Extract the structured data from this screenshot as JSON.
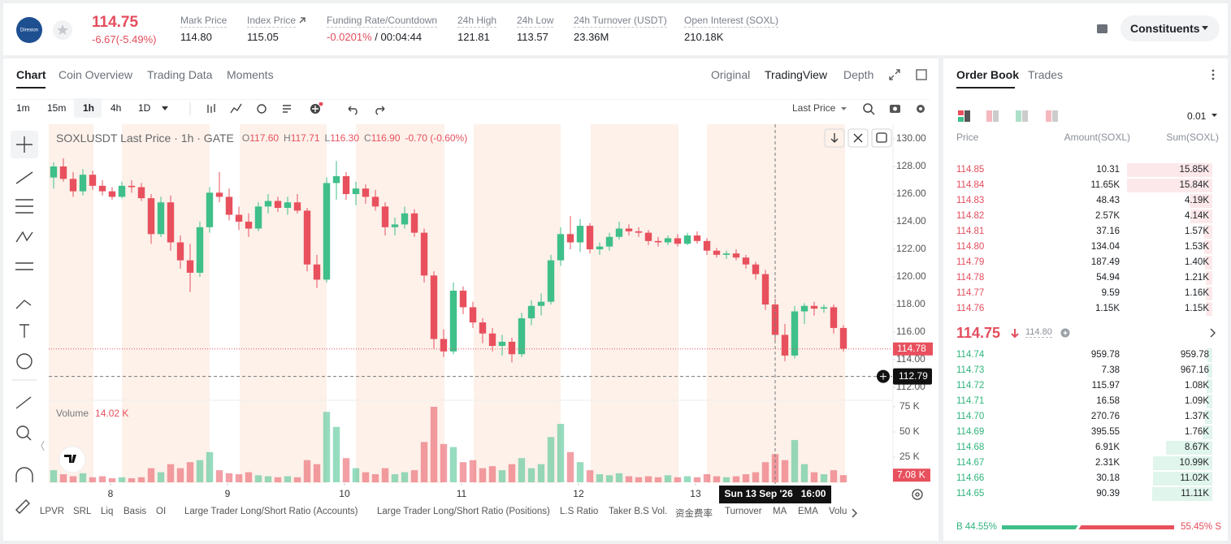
{
  "header": {
    "logo_text": "Direxion",
    "price": "114.75",
    "change": "-6.67(-5.49%)",
    "stats": [
      {
        "label": "Mark Price",
        "value": "114.80"
      },
      {
        "label": "Index Price",
        "value": "115.05"
      },
      {
        "label": "Funding Rate/Countdown",
        "value": "-0.0201%",
        "countdown": "/ 00:04:44"
      },
      {
        "label": "24h High",
        "value": "121.81"
      },
      {
        "label": "24h Low",
        "value": "113.57"
      },
      {
        "label": "24h Turnover (USDT)",
        "value": "23.36M"
      },
      {
        "label": "Open Interest (SOXL)",
        "value": "210.18K"
      }
    ],
    "button": "Constituents"
  },
  "tabs": [
    "Chart",
    "Coin Overview",
    "Trading Data",
    "Moments"
  ],
  "view_tabs": [
    "Original",
    "TradingView",
    "Depth"
  ],
  "intervals": [
    "1m",
    "15m",
    "1h",
    "4h",
    "1D"
  ],
  "price_type": "Last Price",
  "indicators": [
    "LPVR",
    "SRL",
    "Liq",
    "Basis",
    "OI",
    "Large Trader Long/Short Ratio (Accounts)",
    "Large Trader Long/Short Ratio (Positions)",
    "L.S Ratio",
    "Taker B.S Vol.",
    "资金费率",
    "Turnover",
    "MA",
    "EMA",
    "Volu"
  ],
  "chart_data": {
    "type": "candlestick",
    "up_color": "#3fbf8a",
    "down_color": "#e8505d",
    "legend": {
      "title": "SOXLUSDT Last Price · 1h · GATE",
      "ohlc": [
        {
          "label": "O",
          "value": "117.60"
        },
        {
          "label": "H",
          "value": "117.71"
        },
        {
          "label": "L",
          "value": "116.30"
        },
        {
          "label": "C",
          "value": "116.90"
        }
      ],
      "change": "-0.70 (-0.60%)"
    },
    "ylim": [
      111.06,
      131.06
    ],
    "yticks": [
      {
        "value": 112,
        "label": "112.00"
      },
      {
        "value": 114,
        "label": "114.00"
      },
      {
        "value": 116,
        "label": "116.00"
      },
      {
        "value": 118,
        "label": "118.00"
      },
      {
        "value": 120,
        "label": "120.00"
      },
      {
        "value": 122,
        "label": "122.00"
      },
      {
        "value": 124,
        "label": "124.00"
      },
      {
        "value": 126,
        "label": "126.00"
      },
      {
        "value": 128,
        "label": "128.00"
      },
      {
        "value": 130,
        "label": "130.00"
      }
    ],
    "xlim": [
      0,
      86.5
    ],
    "xticks": [
      {
        "value": 6.33,
        "label": "8"
      },
      {
        "value": 18.33,
        "label": "9"
      },
      {
        "value": 30.33,
        "label": "10"
      },
      {
        "value": 42.33,
        "label": "11"
      },
      {
        "value": 54.33,
        "label": "12"
      },
      {
        "value": 66.33,
        "label": "13"
      }
    ],
    "ohlc": [
      [
        127.2,
        128.3,
        126.4,
        128.0
      ],
      [
        128.0,
        128.6,
        126.9,
        127.1
      ],
      [
        127.1,
        127.6,
        125.8,
        126.2
      ],
      [
        126.2,
        127.8,
        125.9,
        127.4
      ],
      [
        127.4,
        127.7,
        126.3,
        126.6
      ],
      [
        126.6,
        127.0,
        125.9,
        126.2
      ],
      [
        126.2,
        126.5,
        125.6,
        125.8
      ],
      [
        125.8,
        126.9,
        125.7,
        126.6
      ],
      [
        126.6,
        127.0,
        126.1,
        126.5
      ],
      [
        126.5,
        126.8,
        125.5,
        125.7
      ],
      [
        125.7,
        126.0,
        122.4,
        123.1
      ],
      [
        123.1,
        125.8,
        122.9,
        125.4
      ],
      [
        125.4,
        125.9,
        121.9,
        122.5
      ],
      [
        122.5,
        123.0,
        120.6,
        121.2
      ],
      [
        121.2,
        122.4,
        118.9,
        120.3
      ],
      [
        120.3,
        124.0,
        120.0,
        123.6
      ],
      [
        123.6,
        126.5,
        123.2,
        126.1
      ],
      [
        126.1,
        127.6,
        125.4,
        125.8
      ],
      [
        125.8,
        126.4,
        124.1,
        124.5
      ],
      [
        124.5,
        125.1,
        123.4,
        124.0
      ],
      [
        124.0,
        124.6,
        122.9,
        123.5
      ],
      [
        123.5,
        125.4,
        123.3,
        125.1
      ],
      [
        125.1,
        126.0,
        124.6,
        125.5
      ],
      [
        125.5,
        125.8,
        124.7,
        125.0
      ],
      [
        125.0,
        125.8,
        124.5,
        125.4
      ],
      [
        125.4,
        126.0,
        124.6,
        124.8
      ],
      [
        124.8,
        125.0,
        120.4,
        120.9
      ],
      [
        120.9,
        121.6,
        119.2,
        119.8
      ],
      [
        119.8,
        127.2,
        119.6,
        126.8
      ],
      [
        126.8,
        128.4,
        125.6,
        127.3
      ],
      [
        127.3,
        127.6,
        125.6,
        126.0
      ],
      [
        126.0,
        126.9,
        125.2,
        126.4
      ],
      [
        126.4,
        126.7,
        125.3,
        125.8
      ],
      [
        125.8,
        126.3,
        124.8,
        125.1
      ],
      [
        125.1,
        125.4,
        123.0,
        123.6
      ],
      [
        123.6,
        124.3,
        123.0,
        123.8
      ],
      [
        123.8,
        125.1,
        123.5,
        124.6
      ],
      [
        124.6,
        124.9,
        122.9,
        123.2
      ],
      [
        123.2,
        123.5,
        119.6,
        120.1
      ],
      [
        120.1,
        120.4,
        114.8,
        115.5
      ],
      [
        115.5,
        116.2,
        114.2,
        114.6
      ],
      [
        114.6,
        119.6,
        114.4,
        119.0
      ],
      [
        119.0,
        119.3,
        117.3,
        117.8
      ],
      [
        117.8,
        118.2,
        116.3,
        116.7
      ],
      [
        116.7,
        117.0,
        115.2,
        115.9
      ],
      [
        115.9,
        116.3,
        114.6,
        115.0
      ],
      [
        115.0,
        115.8,
        114.3,
        115.3
      ],
      [
        115.3,
        115.6,
        113.8,
        114.4
      ],
      [
        114.4,
        117.4,
        114.2,
        117.0
      ],
      [
        117.0,
        118.3,
        116.5,
        117.9
      ],
      [
        117.9,
        118.8,
        117.2,
        118.2
      ],
      [
        118.2,
        121.6,
        118.0,
        121.2
      ],
      [
        121.2,
        123.6,
        120.8,
        123.1
      ],
      [
        123.1,
        124.4,
        122.0,
        122.5
      ],
      [
        122.5,
        124.2,
        121.8,
        123.7
      ],
      [
        123.7,
        123.9,
        121.7,
        122.0
      ],
      [
        122.0,
        122.5,
        121.6,
        122.2
      ],
      [
        122.2,
        123.2,
        121.9,
        122.9
      ],
      [
        122.9,
        124.0,
        122.7,
        123.5
      ],
      [
        123.5,
        123.8,
        123.0,
        123.3
      ],
      [
        123.3,
        123.6,
        122.9,
        123.2
      ],
      [
        123.2,
        123.4,
        122.3,
        122.6
      ],
      [
        122.6,
        122.9,
        122.2,
        122.5
      ],
      [
        122.5,
        123.0,
        122.3,
        122.8
      ],
      [
        122.8,
        123.1,
        122.2,
        122.4
      ],
      [
        122.4,
        123.2,
        122.3,
        123.0
      ],
      [
        123.0,
        123.3,
        122.4,
        122.6
      ],
      [
        122.6,
        122.8,
        121.6,
        121.9
      ],
      [
        121.9,
        122.1,
        121.4,
        121.6
      ],
      [
        121.6,
        121.9,
        121.3,
        121.7
      ],
      [
        121.7,
        122.0,
        121.2,
        121.4
      ],
      [
        121.4,
        121.6,
        120.6,
        120.9
      ],
      [
        120.9,
        121.1,
        119.8,
        120.2
      ],
      [
        120.2,
        120.5,
        117.6,
        118.0
      ],
      [
        118.0,
        118.4,
        115.4,
        115.8
      ],
      [
        115.8,
        116.6,
        113.9,
        114.3
      ],
      [
        114.3,
        117.9,
        114.1,
        117.5
      ],
      [
        117.5,
        118.1,
        116.6,
        117.9
      ],
      [
        117.9,
        118.2,
        117.2,
        117.7
      ],
      [
        117.7,
        118.0,
        117.4,
        117.8
      ],
      [
        117.8,
        118.0,
        115.9,
        116.3
      ],
      [
        116.3,
        116.5,
        114.6,
        114.8
      ]
    ],
    "last_price": {
      "value": 114.78,
      "label": "114.78"
    },
    "crosshair": {
      "x": 74.5,
      "y": 112.79,
      "x_label": "Sun 13 Sep '26   16:00"
    },
    "volume": {
      "name": "Volume",
      "value_label": "14.02 K",
      "last_label": "7.08 K",
      "ylim": [
        0,
        81450
      ],
      "yticks": [
        {
          "value": 25000,
          "label": "25 K"
        },
        {
          "value": 50000,
          "label": "50 K"
        },
        {
          "value": 75000,
          "label": "75 K"
        }
      ],
      "values": [
        12000,
        8000,
        6000,
        9000,
        5000,
        6000,
        4000,
        5000,
        4000,
        5000,
        14000,
        10000,
        18000,
        14000,
        20000,
        22000,
        30000,
        12000,
        9000,
        8000,
        10000,
        7000,
        6000,
        5000,
        6000,
        5000,
        22000,
        18000,
        70000,
        55000,
        24000,
        14000,
        10000,
        8000,
        14000,
        8000,
        10000,
        12000,
        40000,
        75000,
        38000,
        35000,
        20000,
        22000,
        14000,
        16000,
        12000,
        18000,
        24000,
        14000,
        18000,
        45000,
        58000,
        30000,
        20000,
        12000,
        8000,
        7000,
        9000,
        6000,
        5000,
        6000,
        5000,
        7000,
        5000,
        6000,
        5000,
        8000,
        6000,
        5000,
        6000,
        8000,
        10000,
        20000,
        28000,
        22000,
        42000,
        18000,
        10000,
        8000,
        12000,
        7080
      ]
    }
  },
  "order_book": {
    "tabs": [
      "Order Book",
      "Trades"
    ],
    "precision": "0.01",
    "columns": [
      "Price",
      "Amount(SOXL)",
      "Sum(SOXL)"
    ],
    "asks": [
      {
        "price": "114.85",
        "amount": "10.31",
        "sum": {
          "value": 15850,
          "label": "15.85K"
        }
      },
      {
        "price": "114.84",
        "amount": "11.65K",
        "sum": {
          "value": 15840,
          "label": "15.84K"
        }
      },
      {
        "price": "114.83",
        "amount": "48.43",
        "sum": {
          "value": 4190,
          "label": "4.19K"
        }
      },
      {
        "price": "114.82",
        "amount": "2.57K",
        "sum": {
          "value": 4140,
          "label": "4.14K"
        }
      },
      {
        "price": "114.81",
        "amount": "37.16",
        "sum": {
          "value": 1570,
          "label": "1.57K"
        }
      },
      {
        "price": "114.80",
        "amount": "134.04",
        "sum": {
          "value": 1530,
          "label": "1.53K"
        }
      },
      {
        "price": "114.79",
        "amount": "187.49",
        "sum": {
          "value": 1400,
          "label": "1.40K"
        }
      },
      {
        "price": "114.78",
        "amount": "54.94",
        "sum": {
          "value": 1210,
          "label": "1.21K"
        }
      },
      {
        "price": "114.77",
        "amount": "9.59",
        "sum": {
          "value": 1160,
          "label": "1.16K"
        }
      },
      {
        "price": "114.76",
        "amount": "1.15K",
        "sum": {
          "value": 1150,
          "label": "1.15K"
        }
      }
    ],
    "last": "114.75",
    "mark": "114.80",
    "bids": [
      {
        "price": "114.74",
        "amount": "959.78",
        "sum": {
          "value": 959.78,
          "label": "959.78"
        }
      },
      {
        "price": "114.73",
        "amount": "7.38",
        "sum": {
          "value": 967.16,
          "label": "967.16"
        }
      },
      {
        "price": "114.72",
        "amount": "115.97",
        "sum": {
          "value": 1080,
          "label": "1.08K"
        }
      },
      {
        "price": "114.71",
        "amount": "16.58",
        "sum": {
          "value": 1090,
          "label": "1.09K"
        }
      },
      {
        "price": "114.70",
        "amount": "270.76",
        "sum": {
          "value": 1370,
          "label": "1.37K"
        }
      },
      {
        "price": "114.69",
        "amount": "395.55",
        "sum": {
          "value": 1760,
          "label": "1.76K"
        }
      },
      {
        "price": "114.68",
        "amount": "6.91K",
        "sum": {
          "value": 8670,
          "label": "8.67K"
        }
      },
      {
        "price": "114.67",
        "amount": "2.31K",
        "sum": {
          "value": 10990,
          "label": "10.99K"
        }
      },
      {
        "price": "114.66",
        "amount": "30.18",
        "sum": {
          "value": 11020,
          "label": "11.02K"
        }
      },
      {
        "price": "114.65",
        "amount": "90.39",
        "sum": {
          "value": 11110,
          "label": "11.11K"
        }
      }
    ],
    "buy": {
      "letter": "B",
      "value": 44.55,
      "label": "44.55%"
    },
    "sell": {
      "letter": "S",
      "value": 55.45,
      "label": "55.45%"
    }
  }
}
